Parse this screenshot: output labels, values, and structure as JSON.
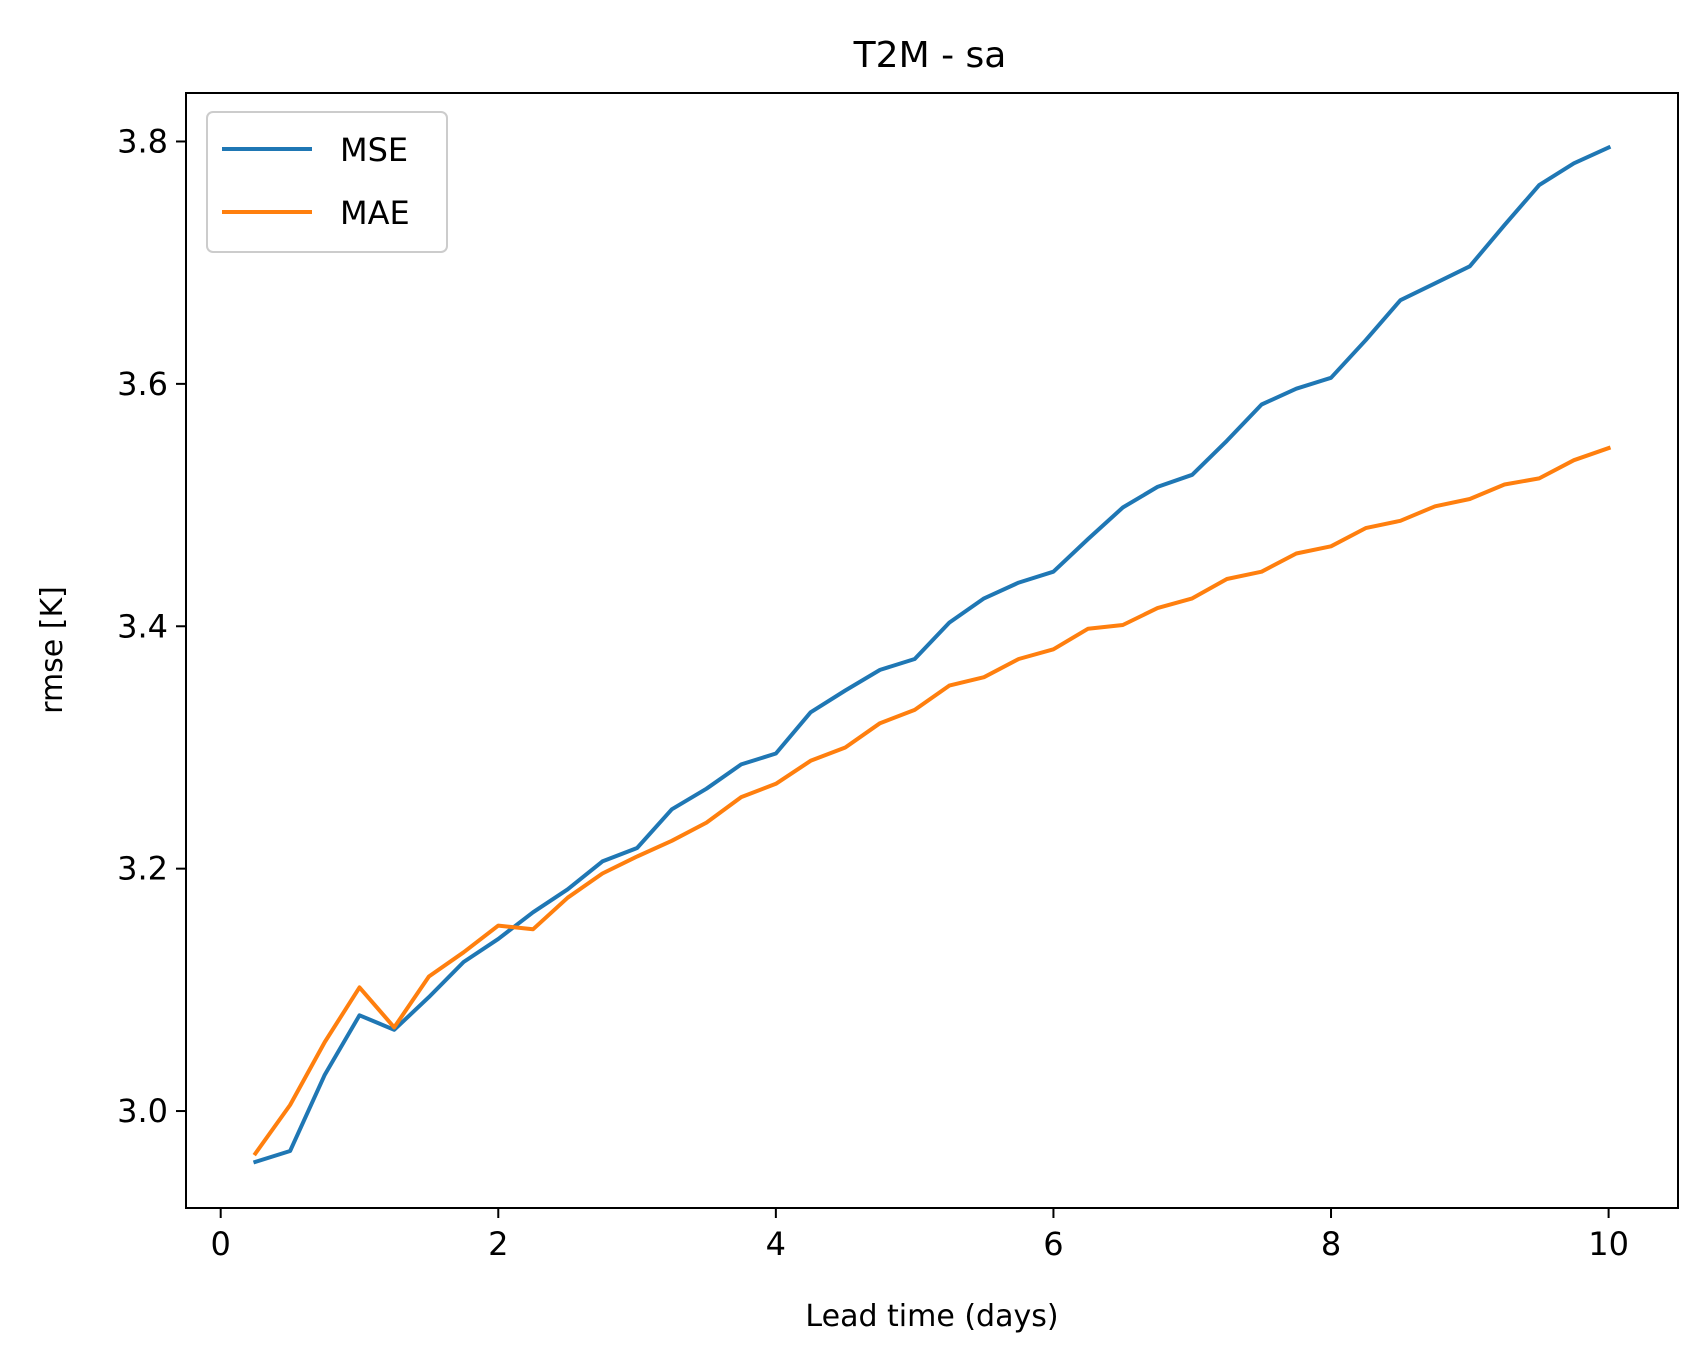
{
  "chart_data": {
    "type": "line",
    "title": "T2M - sa",
    "xlabel": "Lead time (days)",
    "ylabel": "rmse [K]",
    "xlim": [
      -0.25,
      10.5
    ],
    "ylim": [
      2.92,
      3.84
    ],
    "xticks": [
      0,
      2,
      4,
      6,
      8,
      10
    ],
    "xtick_labels": [
      "0",
      "2",
      "4",
      "6",
      "8",
      "10"
    ],
    "yticks": [
      3.0,
      3.2,
      3.4,
      3.6,
      3.8
    ],
    "ytick_labels": [
      "3.0",
      "3.2",
      "3.4",
      "3.6",
      "3.8"
    ],
    "grid": false,
    "legend_position": "top-left",
    "x": [
      0.25,
      0.5,
      0.75,
      1.0,
      1.25,
      1.5,
      1.75,
      2.0,
      2.25,
      2.5,
      2.75,
      3.0,
      3.25,
      3.5,
      3.75,
      4.0,
      4.25,
      4.5,
      4.75,
      5.0,
      5.25,
      5.5,
      5.75,
      6.0,
      6.25,
      6.5,
      6.75,
      7.0,
      7.25,
      7.5,
      7.75,
      8.0,
      8.25,
      8.5,
      8.75,
      9.0,
      9.25,
      9.5,
      9.75,
      10.0
    ],
    "series": [
      {
        "name": "MSE",
        "color": "#1f77b4",
        "values": [
          2.958,
          2.967,
          3.03,
          3.079,
          3.067,
          3.094,
          3.123,
          3.142,
          3.164,
          3.183,
          3.206,
          3.217,
          3.249,
          3.266,
          3.286,
          3.295,
          3.329,
          3.347,
          3.364,
          3.373,
          3.403,
          3.423,
          3.436,
          3.445,
          3.472,
          3.498,
          3.515,
          3.525,
          3.553,
          3.583,
          3.596,
          3.605,
          3.636,
          3.669,
          3.683,
          3.697,
          3.731,
          3.764,
          3.782,
          3.795
        ]
      },
      {
        "name": "MAE",
        "color": "#ff7f0e",
        "values": [
          2.965,
          3.005,
          3.057,
          3.102,
          3.069,
          3.111,
          3.131,
          3.153,
          3.15,
          3.176,
          3.196,
          3.21,
          3.223,
          3.238,
          3.259,
          3.27,
          3.289,
          3.3,
          3.32,
          3.331,
          3.351,
          3.358,
          3.373,
          3.381,
          3.398,
          3.401,
          3.415,
          3.423,
          3.439,
          3.445,
          3.46,
          3.466,
          3.481,
          3.487,
          3.499,
          3.505,
          3.517,
          3.522,
          3.537,
          3.547
        ]
      }
    ]
  }
}
